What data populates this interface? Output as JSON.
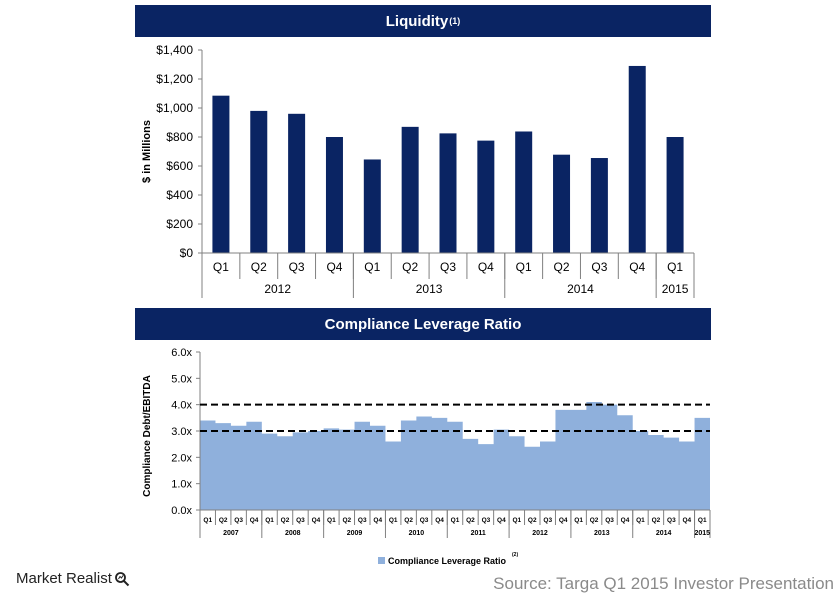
{
  "chart_data": [
    {
      "type": "bar",
      "title": "Liquidity",
      "title_superscript": "(1)",
      "ylabel": "$ in Millions",
      "ylim": [
        0,
        1400
      ],
      "yticks": [
        "$0",
        "$200",
        "$400",
        "$600",
        "$800",
        "$1,000",
        "$1,200",
        "$1,400"
      ],
      "categories": [
        "Q1",
        "Q2",
        "Q3",
        "Q4",
        "Q1",
        "Q2",
        "Q3",
        "Q4",
        "Q1",
        "Q2",
        "Q3",
        "Q4",
        "Q1"
      ],
      "groups": [
        {
          "label": "2012",
          "count": 4
        },
        {
          "label": "2013",
          "count": 4
        },
        {
          "label": "2014",
          "count": 4
        },
        {
          "label": "2015",
          "count": 1
        }
      ],
      "values": [
        1085,
        980,
        960,
        800,
        645,
        870,
        825,
        775,
        838,
        678,
        655,
        1290,
        800
      ],
      "color": "#0a2463",
      "grid": false
    },
    {
      "type": "area",
      "title": "Compliance Leverage Ratio",
      "ylabel": "Compliance Debt/EBITDA",
      "ylim": [
        0,
        6
      ],
      "yticks": [
        "0.0x",
        "1.0x",
        "2.0x",
        "3.0x",
        "4.0x",
        "5.0x",
        "6.0x"
      ],
      "categories": [
        "Q1",
        "Q2",
        "Q3",
        "Q4",
        "Q1",
        "Q2",
        "Q3",
        "Q4",
        "Q1",
        "Q2",
        "Q3",
        "Q4",
        "Q1",
        "Q2",
        "Q3",
        "Q4",
        "Q1",
        "Q2",
        "Q3",
        "Q4",
        "Q1",
        "Q2",
        "Q3",
        "Q4",
        "Q1",
        "Q2",
        "Q3",
        "Q4",
        "Q1",
        "Q2",
        "Q3",
        "Q4",
        "Q1"
      ],
      "groups": [
        {
          "label": "2007",
          "count": 4
        },
        {
          "label": "2008",
          "count": 4
        },
        {
          "label": "2009",
          "count": 4
        },
        {
          "label": "2010",
          "count": 4
        },
        {
          "label": "2011",
          "count": 4
        },
        {
          "label": "2012",
          "count": 4
        },
        {
          "label": "2013",
          "count": 4
        },
        {
          "label": "2014",
          "count": 4
        },
        {
          "label": "2015",
          "count": 1
        }
      ],
      "series": [
        {
          "name": "Compliance Leverage Ratio",
          "values": [
            3.4,
            3.3,
            3.2,
            3.35,
            2.9,
            2.8,
            2.95,
            3.0,
            3.1,
            3.05,
            3.35,
            3.2,
            2.6,
            3.4,
            3.55,
            3.5,
            3.35,
            2.7,
            2.5,
            3.05,
            2.8,
            2.4,
            2.6,
            3.8,
            3.8,
            4.1,
            4.0,
            3.6,
            3.0,
            2.85,
            2.75,
            2.6,
            3.5
          ]
        }
      ],
      "legend_label": "Compliance Leverage Ratio",
      "legend_superscript": "(2)",
      "legend_position": "bottom",
      "reference_lines": [
        4.0,
        3.0
      ],
      "color": "#8fb0dc",
      "grid": false
    }
  ],
  "footer": {
    "logo_text": "Market Realist",
    "source": "Source: Targa Q1 2015 Investor Presentation"
  }
}
